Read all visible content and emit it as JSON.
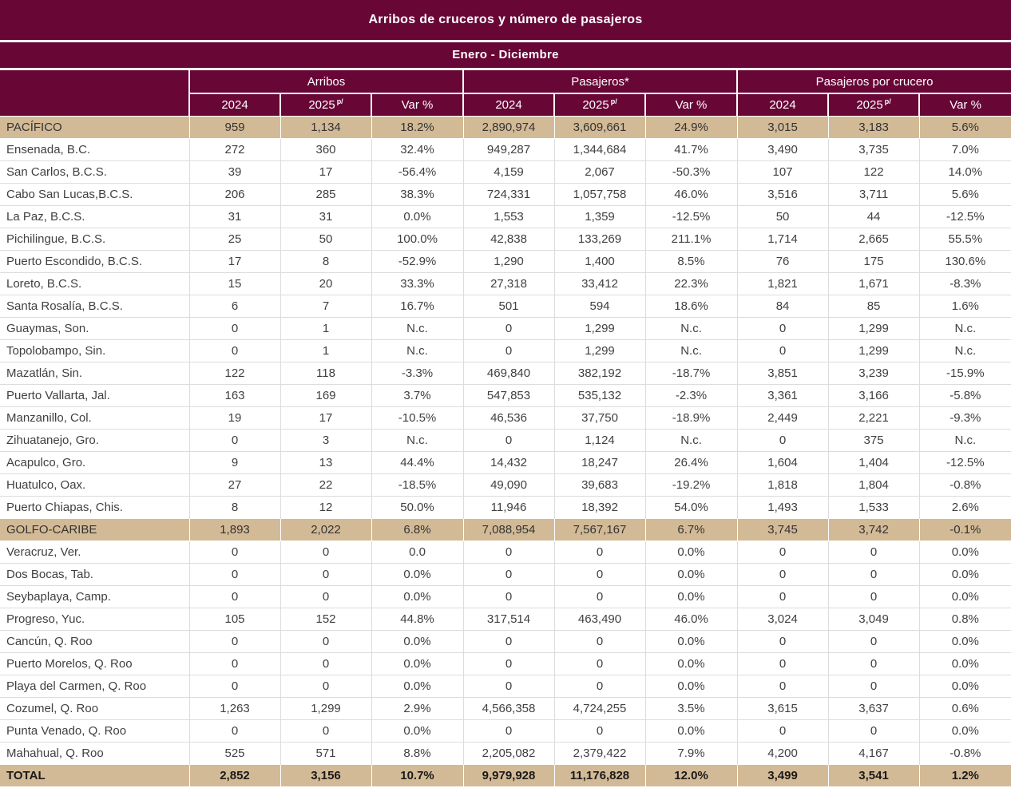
{
  "report": {
    "title": "Arribos de cruceros y número de pasajeros",
    "period": "Enero - Diciembre"
  },
  "colors": {
    "header_maroon": "#680636",
    "highlight_tan": "#d3ba96",
    "grid_line": "#dcdcdc",
    "body_text": "#404040",
    "header_text": "#ffffff"
  },
  "chart_data": {
    "type": "table",
    "title": "Arribos de cruceros y número de pasajeros",
    "subtitle": "Enero - Diciembre",
    "column_groups": [
      "Arribos",
      "Pasajeros*",
      "Pasajeros por crucero"
    ],
    "sub_columns": [
      "2024",
      "2025",
      "Var %"
    ],
    "superscript_note": "p/",
    "rows": [
      {
        "name": "PACÍFICO",
        "type": "section",
        "values": [
          "959",
          "1,134",
          "18.2%",
          "2,890,974",
          "3,609,661",
          "24.9%",
          "3,015",
          "3,183",
          "5.6%"
        ]
      },
      {
        "name": "Ensenada, B.C.",
        "type": "data",
        "values": [
          "272",
          "360",
          "32.4%",
          "949,287",
          "1,344,684",
          "41.7%",
          "3,490",
          "3,735",
          "7.0%"
        ]
      },
      {
        "name": "San Carlos, B.C.S.",
        "type": "data",
        "values": [
          "39",
          "17",
          "-56.4%",
          "4,159",
          "2,067",
          "-50.3%",
          "107",
          "122",
          "14.0%"
        ]
      },
      {
        "name": "Cabo San Lucas,B.C.S.",
        "type": "data",
        "values": [
          "206",
          "285",
          "38.3%",
          "724,331",
          "1,057,758",
          "46.0%",
          "3,516",
          "3,711",
          "5.6%"
        ]
      },
      {
        "name": "La Paz, B.C.S.",
        "type": "data",
        "values": [
          "31",
          "31",
          "0.0%",
          "1,553",
          "1,359",
          "-12.5%",
          "50",
          "44",
          "-12.5%"
        ]
      },
      {
        "name": "Pichilingue, B.C.S.",
        "type": "data",
        "values": [
          "25",
          "50",
          "100.0%",
          "42,838",
          "133,269",
          "211.1%",
          "1,714",
          "2,665",
          "55.5%"
        ]
      },
      {
        "name": "Puerto Escondido, B.C.S.",
        "type": "data",
        "values": [
          "17",
          "8",
          "-52.9%",
          "1,290",
          "1,400",
          "8.5%",
          "76",
          "175",
          "130.6%"
        ]
      },
      {
        "name": "Loreto, B.C.S.",
        "type": "data",
        "values": [
          "15",
          "20",
          "33.3%",
          "27,318",
          "33,412",
          "22.3%",
          "1,821",
          "1,671",
          "-8.3%"
        ]
      },
      {
        "name": "Santa Rosalía, B.C.S.",
        "type": "data",
        "values": [
          "6",
          "7",
          "16.7%",
          "501",
          "594",
          "18.6%",
          "84",
          "85",
          "1.6%"
        ]
      },
      {
        "name": "Guaymas, Son.",
        "type": "data",
        "values": [
          "0",
          "1",
          "N.c.",
          "0",
          "1,299",
          "N.c.",
          "0",
          "1,299",
          "N.c."
        ]
      },
      {
        "name": "Topolobampo, Sin.",
        "type": "data",
        "values": [
          "0",
          "1",
          "N.c.",
          "0",
          "1,299",
          "N.c.",
          "0",
          "1,299",
          "N.c."
        ]
      },
      {
        "name": "Mazatlán, Sin.",
        "type": "data",
        "values": [
          "122",
          "118",
          "-3.3%",
          "469,840",
          "382,192",
          "-18.7%",
          "3,851",
          "3,239",
          "-15.9%"
        ]
      },
      {
        "name": "Puerto Vallarta, Jal.",
        "type": "data",
        "values": [
          "163",
          "169",
          "3.7%",
          "547,853",
          "535,132",
          "-2.3%",
          "3,361",
          "3,166",
          "-5.8%"
        ]
      },
      {
        "name": "Manzanillo, Col.",
        "type": "data",
        "values": [
          "19",
          "17",
          "-10.5%",
          "46,536",
          "37,750",
          "-18.9%",
          "2,449",
          "2,221",
          "-9.3%"
        ]
      },
      {
        "name": "Zihuatanejo, Gro.",
        "type": "data",
        "values": [
          "0",
          "3",
          "N.c.",
          "0",
          "1,124",
          "N.c.",
          "0",
          "375",
          "N.c."
        ]
      },
      {
        "name": "Acapulco, Gro.",
        "type": "data",
        "values": [
          "9",
          "13",
          "44.4%",
          "14,432",
          "18,247",
          "26.4%",
          "1,604",
          "1,404",
          "-12.5%"
        ]
      },
      {
        "name": "Huatulco, Oax.",
        "type": "data",
        "values": [
          "27",
          "22",
          "-18.5%",
          "49,090",
          "39,683",
          "-19.2%",
          "1,818",
          "1,804",
          "-0.8%"
        ]
      },
      {
        "name": "Puerto Chiapas, Chis.",
        "type": "data",
        "values": [
          "8",
          "12",
          "50.0%",
          "11,946",
          "18,392",
          "54.0%",
          "1,493",
          "1,533",
          "2.6%"
        ]
      },
      {
        "name": "GOLFO-CARIBE",
        "type": "section",
        "values": [
          "1,893",
          "2,022",
          "6.8%",
          "7,088,954",
          "7,567,167",
          "6.7%",
          "3,745",
          "3,742",
          "-0.1%"
        ]
      },
      {
        "name": "Veracruz, Ver.",
        "type": "data",
        "values": [
          "0",
          "0",
          "0.0",
          "0",
          "0",
          "0.0%",
          "0",
          "0",
          "0.0%"
        ]
      },
      {
        "name": "Dos Bocas, Tab.",
        "type": "data",
        "values": [
          "0",
          "0",
          "0.0%",
          "0",
          "0",
          "0.0%",
          "0",
          "0",
          "0.0%"
        ]
      },
      {
        "name": "Seybaplaya, Camp.",
        "type": "data",
        "values": [
          "0",
          "0",
          "0.0%",
          "0",
          "0",
          "0.0%",
          "0",
          "0",
          "0.0%"
        ]
      },
      {
        "name": "Progreso, Yuc.",
        "type": "data",
        "values": [
          "105",
          "152",
          "44.8%",
          "317,514",
          "463,490",
          "46.0%",
          "3,024",
          "3,049",
          "0.8%"
        ]
      },
      {
        "name": "Cancún, Q. Roo",
        "type": "data",
        "values": [
          "0",
          "0",
          "0.0%",
          "0",
          "0",
          "0.0%",
          "0",
          "0",
          "0.0%"
        ]
      },
      {
        "name": "Puerto Morelos, Q. Roo",
        "type": "data",
        "values": [
          "0",
          "0",
          "0.0%",
          "0",
          "0",
          "0.0%",
          "0",
          "0",
          "0.0%"
        ]
      },
      {
        "name": "Playa del Carmen, Q. Roo",
        "type": "data",
        "values": [
          "0",
          "0",
          "0.0%",
          "0",
          "0",
          "0.0%",
          "0",
          "0",
          "0.0%"
        ]
      },
      {
        "name": "Cozumel, Q. Roo",
        "type": "data",
        "values": [
          "1,263",
          "1,299",
          "2.9%",
          "4,566,358",
          "4,724,255",
          "3.5%",
          "3,615",
          "3,637",
          "0.6%"
        ]
      },
      {
        "name": "Punta Venado, Q. Roo",
        "type": "data",
        "values": [
          "0",
          "0",
          "0.0%",
          "0",
          "0",
          "0.0%",
          "0",
          "0",
          "0.0%"
        ]
      },
      {
        "name": "Mahahual, Q. Roo",
        "type": "data",
        "values": [
          "525",
          "571",
          "8.8%",
          "2,205,082",
          "2,379,422",
          "7.9%",
          "4,200",
          "4,167",
          "-0.8%"
        ]
      },
      {
        "name": "TOTAL",
        "type": "total",
        "values": [
          "2,852",
          "3,156",
          "10.7%",
          "9,979,928",
          "11,176,828",
          "12.0%",
          "3,499",
          "3,541",
          "1.2%"
        ]
      }
    ]
  }
}
